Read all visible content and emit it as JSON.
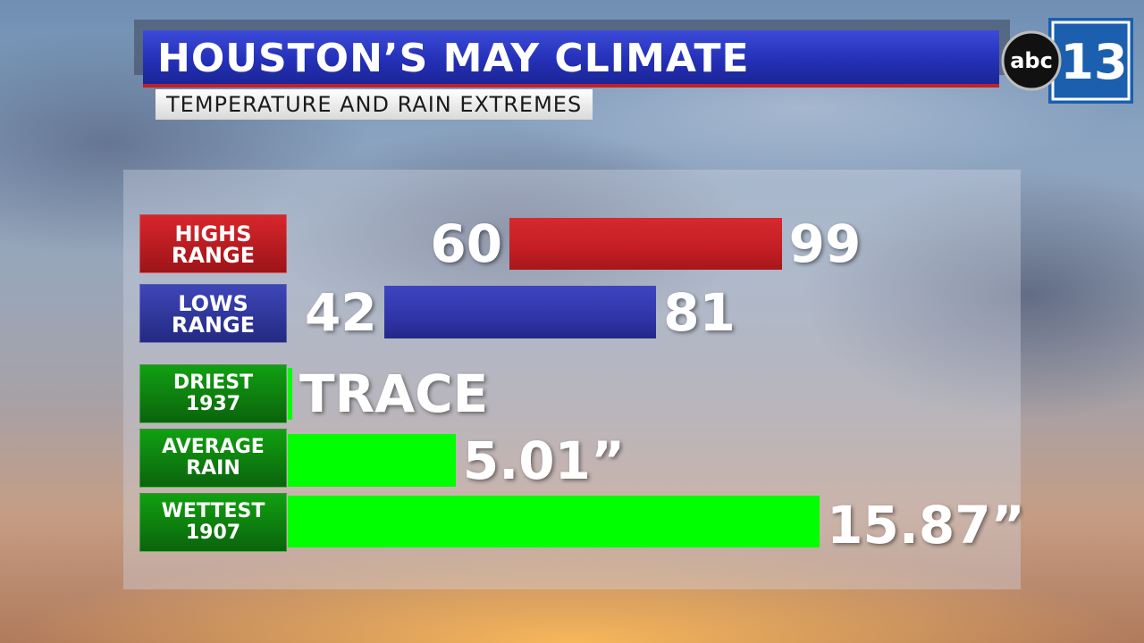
{
  "header": {
    "title": "HOUSTON’S MAY CLIMATE",
    "subtitle": "TEMPERATURE AND RAIN EXTREMES"
  },
  "logo": {
    "network": "abc",
    "channel": "13"
  },
  "colors": {
    "highs": "#c41e24",
    "lows": "#2f35a8",
    "rain": "#00ff00",
    "title_bar": "#2430b8",
    "accent_red": "#c0202a"
  },
  "chart_data": [
    {
      "type": "bar",
      "title": "HOUSTON’S MAY CLIMATE",
      "subtitle": "TEMPERATURE AND RAIN EXTREMES",
      "categories": [
        "HIGHS RANGE",
        "LOWS RANGE"
      ],
      "series": [
        {
          "name": "HIGHS RANGE",
          "label_lines": [
            "HIGHS",
            "RANGE"
          ],
          "low": 60,
          "high": 99,
          "low_label": "60",
          "high_label": "99"
        },
        {
          "name": "LOWS RANGE",
          "label_lines": [
            "LOWS",
            "RANGE"
          ],
          "low": 42,
          "high": 81,
          "low_label": "42",
          "high_label": "81"
        }
      ]
    },
    {
      "type": "bar",
      "categories": [
        "DRIEST 1937",
        "AVERAGE RAIN",
        "WETTEST 1907"
      ],
      "series": [
        {
          "name": "DRIEST 1937",
          "label_lines": [
            "DRIEST",
            "1937"
          ],
          "value": 0,
          "value_label": "TRACE"
        },
        {
          "name": "AVERAGE RAIN",
          "label_lines": [
            "AVERAGE",
            "RAIN"
          ],
          "value": 5.01,
          "value_label": "5.01”"
        },
        {
          "name": "WETTEST 1907",
          "label_lines": [
            "WETTEST",
            "1907"
          ],
          "value": 15.87,
          "value_label": "15.87”"
        }
      ]
    }
  ]
}
